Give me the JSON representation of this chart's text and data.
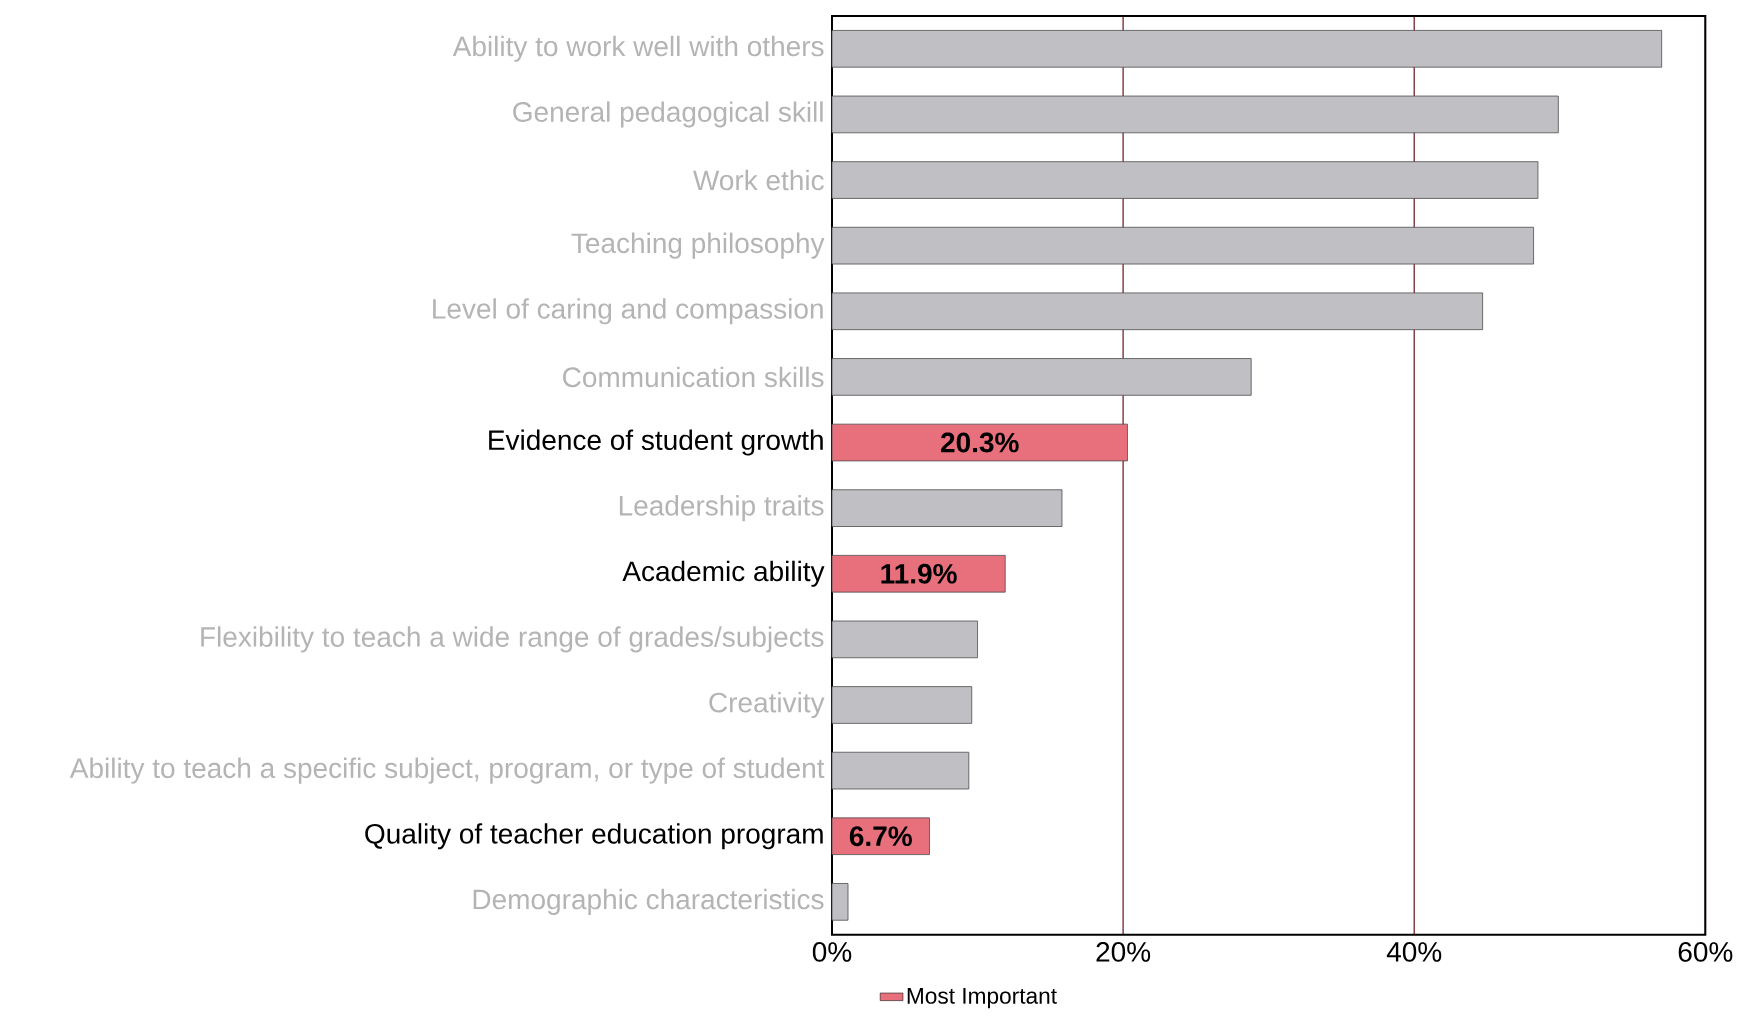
{
  "chart_data": {
    "type": "bar",
    "orientation": "horizontal",
    "categories": [
      "Ability to work well with others",
      "General pedagogical skill",
      "Work ethic",
      "Teaching philosophy",
      "Level of caring and compassion",
      "Communication skills",
      "Evidence of student growth",
      "Leadership traits",
      "Academic ability",
      "Flexibility to teach a wide range of grades/subjects",
      "Creativity",
      "Ability to teach a specific subject, program, or type of student",
      "Quality of teacher education program",
      "Demographic characteristics"
    ],
    "series": [
      {
        "color": "#c0c0c4",
        "values": [
          57.0,
          49.9,
          48.5,
          48.2,
          44.7,
          28.8,
          null,
          15.8,
          null,
          10.0,
          9.6,
          9.4,
          null,
          1.1
        ]
      },
      {
        "name": "Most Important",
        "color": "#e8707c",
        "values": [
          null,
          null,
          null,
          null,
          null,
          null,
          20.3,
          null,
          11.9,
          null,
          null,
          null,
          6.7,
          null
        ],
        "value_labels": [
          null,
          null,
          null,
          null,
          null,
          null,
          "20.3%",
          null,
          "11.9%",
          null,
          null,
          null,
          "6.7%",
          null
        ]
      }
    ],
    "xlim": [
      0,
      60
    ],
    "xticks": [
      {
        "value": 0,
        "label": "0%"
      },
      {
        "value": 20,
        "label": "20%"
      },
      {
        "value": 40,
        "label": "40%"
      },
      {
        "value": 60,
        "label": "60%"
      }
    ],
    "grid": "x",
    "legend": "bottom"
  }
}
